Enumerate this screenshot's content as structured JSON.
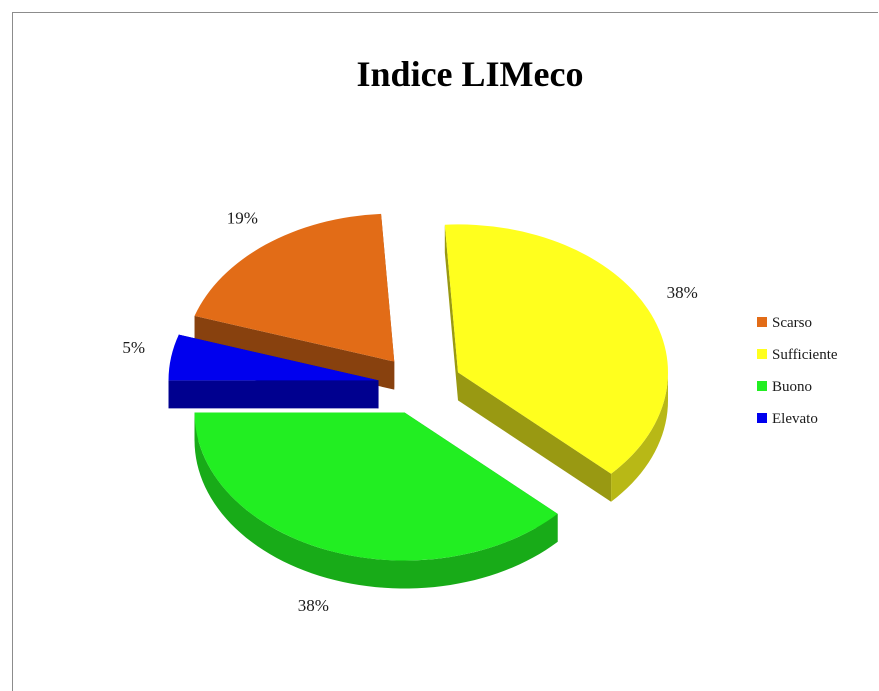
{
  "chart_data": {
    "type": "pie",
    "title": "Indice LIMeco",
    "labels": [
      "Scarso",
      "Sufficiente",
      "Buono",
      "Elevato"
    ],
    "values": [
      19,
      38,
      38,
      5
    ],
    "value_labels": [
      "19%",
      "38%",
      "38%",
      "5%"
    ],
    "colors": [
      "#e26c17",
      "#ffff1e",
      "#22ee22",
      "#0000ee"
    ],
    "exploded": true,
    "three_d": true,
    "legend_position": "right"
  }
}
